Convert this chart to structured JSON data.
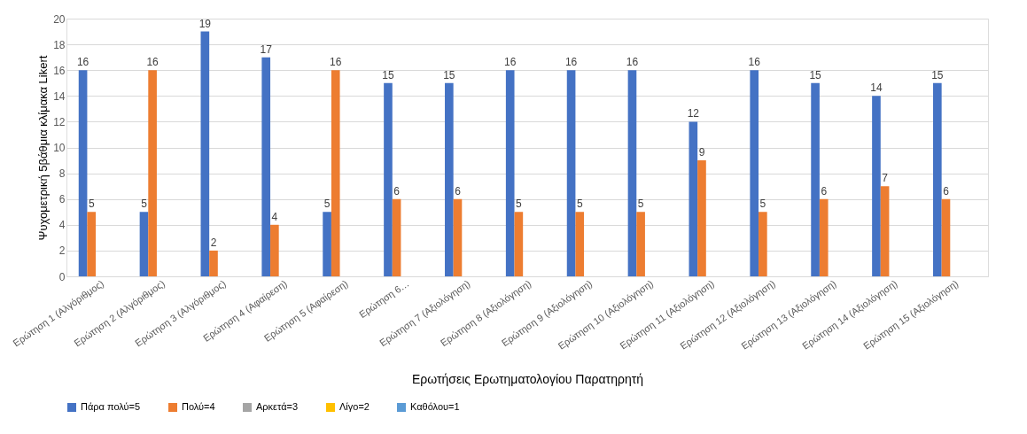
{
  "chart_data": {
    "type": "bar",
    "xlabel": "Ερωτήσεις Ερωτηματολογίου Παρατηρητή",
    "ylabel": "Ψυχομετρική 5βάθμια κλίμακα Likert",
    "categories": [
      "Ερώτηση 1 (Αλγόριθμος)",
      "Ερώτηση 2 (Αλγόριθμος)",
      "Ερώτηση 3 (Αλγόριθμος)",
      "Ερώτηση 4 (Αφαίρεση)",
      "Ερώτηση 5 (Αφαίρεση)",
      "Ερώτηση 6…",
      "Ερώτηση 7 (Αξιολόγηση)",
      "Ερώτηση 8 (Αξιολόγηση)",
      "Ερώτηση 9 (Αξιολόγηση)",
      "Ερώτηση 10 (Αξιολόγηση)",
      "Ερώτηση 11 (Αξιολόγηση)",
      "Ερώτηση 12 (Αξιολόγηση)",
      "Ερώτηση 13 (Αξιολόγηση)",
      "Ερώτηση 14 (Αξιολόγηση)",
      "Ερώτηση 15 (Αξιολόγηση)"
    ],
    "series": [
      {
        "name": "Πάρα πολύ=5",
        "color": "#4472c4",
        "values": [
          16,
          5,
          19,
          17,
          5,
          15,
          15,
          16,
          16,
          16,
          12,
          16,
          15,
          14,
          15
        ]
      },
      {
        "name": "Πολύ=4",
        "color": "#ed7d31",
        "values": [
          5,
          16,
          2,
          4,
          16,
          6,
          6,
          5,
          5,
          5,
          9,
          5,
          6,
          7,
          6
        ]
      },
      {
        "name": "Αρκετά=3",
        "color": "#a5a5a5",
        "values": [
          null,
          null,
          null,
          null,
          null,
          null,
          null,
          null,
          null,
          null,
          null,
          null,
          null,
          null,
          null
        ]
      },
      {
        "name": "Λίγο=2",
        "color": "#ffc000",
        "values": [
          null,
          null,
          null,
          null,
          null,
          null,
          null,
          null,
          null,
          null,
          null,
          null,
          null,
          null,
          null
        ]
      },
      {
        "name": "Καθόλου=1",
        "color": "#5b9bd5",
        "values": [
          null,
          null,
          null,
          null,
          null,
          null,
          null,
          null,
          null,
          null,
          null,
          null,
          null,
          null,
          null
        ]
      }
    ],
    "ylim": [
      0,
      20
    ],
    "yticks": [
      0,
      2,
      4,
      6,
      8,
      10,
      12,
      14,
      16,
      18,
      20
    ],
    "grid": "y",
    "data_labels": true,
    "legend": "bottom"
  }
}
